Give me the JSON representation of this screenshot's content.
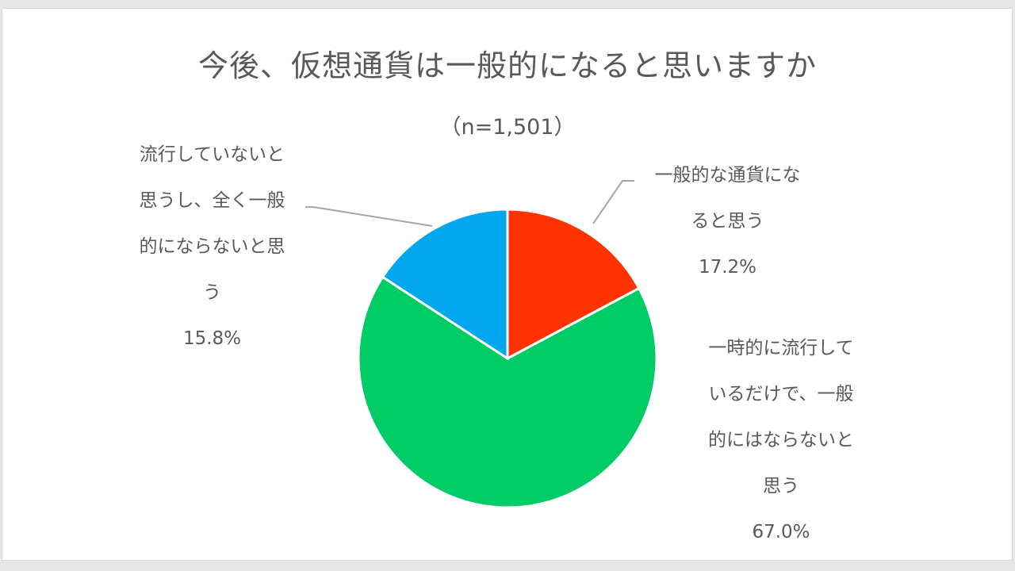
{
  "chart_data": {
    "type": "pie",
    "title": "今後、仮想通貨は一般的になると思いますか",
    "subtitle": "（n=1,501）",
    "start_angle_deg": 0,
    "direction": "clockwise",
    "slices": [
      {
        "label": "一般的な通貨になると思う",
        "value": 17.2,
        "display": "17.2%",
        "color": "#ff3300"
      },
      {
        "label": "一時的に流行しているだけで、一般的にはならないと思う",
        "value": 67.0,
        "display": "67.0%",
        "color": "#00cc66"
      },
      {
        "label": "流行していないと思うし、全く一般的にならないと思う",
        "value": 15.8,
        "display": "15.8%",
        "color": "#00a6ee"
      }
    ],
    "legend": "none (data labels with leader lines)"
  },
  "labels": {
    "red": {
      "lines": [
        "一般的な通貨にな",
        "ると思う"
      ],
      "pct": "17.2%"
    },
    "green": {
      "lines": [
        "一時的に流行して",
        "いるだけで、一般",
        "的にはならないと",
        "思う"
      ],
      "pct": "67.0%"
    },
    "blue": {
      "lines": [
        "流行していないと",
        "思うし、全く一般",
        "的にならないと思",
        "う"
      ],
      "pct": "15.8%"
    }
  }
}
